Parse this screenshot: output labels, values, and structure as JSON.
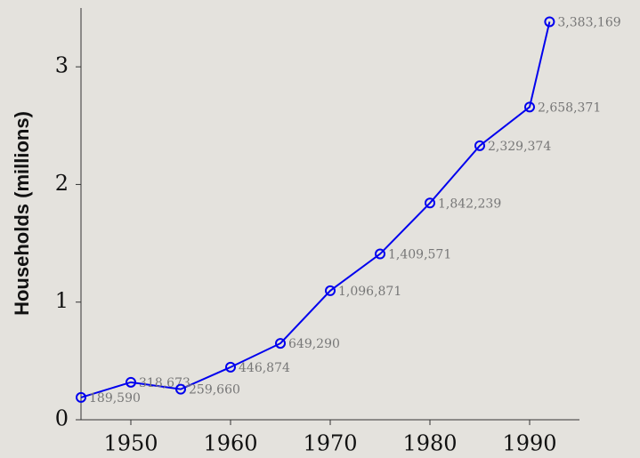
{
  "chart_data": {
    "type": "line",
    "ylabel": "Households (millions)",
    "x": [
      1945,
      1950,
      1955,
      1960,
      1965,
      1970,
      1975,
      1980,
      1985,
      1990,
      1992
    ],
    "series": [
      {
        "name": "Households",
        "color": "#0000ee",
        "values": [
          0.18959,
          0.318673,
          0.25966,
          0.446874,
          0.64929,
          1.096871,
          1.409571,
          1.842239,
          2.329374,
          2.658371,
          3.383169
        ],
        "value_labels": [
          "189,590",
          "318,673",
          "259,660",
          "446,874",
          "649,290",
          "1,096,871",
          "1,409,571",
          "1,842,239",
          "2,329,374",
          "2,658,371",
          "3,383,169"
        ]
      }
    ],
    "xlim": [
      1945,
      1995
    ],
    "xticks": [
      1950,
      1960,
      1970,
      1980,
      1990
    ],
    "ylim": [
      0,
      3.5
    ],
    "yticks": [
      0,
      1,
      2,
      3
    ]
  }
}
